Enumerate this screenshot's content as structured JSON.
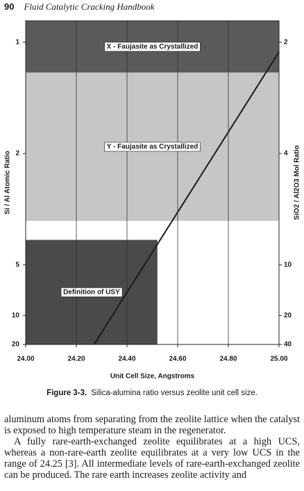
{
  "header": {
    "page_number": "90",
    "title": "Fluid Catalytic Cracking Handbook"
  },
  "chart_data": {
    "type": "line",
    "xlabel": "Unit Cell Size, Angstroms",
    "ylabel": "Si / Al Atomic Ratio",
    "y2label": "SiO2 / Al2O3 Mol Ratio",
    "xlim": [
      24,
      25
    ],
    "xticks": [
      {
        "value": 24,
        "label": "24.00"
      },
      {
        "value": 24.2,
        "label": "24.20"
      },
      {
        "value": 24.4,
        "label": "24.40"
      },
      {
        "value": 24.6,
        "label": "24.60"
      },
      {
        "value": 24.8,
        "label": "24.80"
      },
      {
        "value": 25,
        "label": "25.00"
      }
    ],
    "yscale": "al-fraction",
    "ylim": [
      20,
      0.88
    ],
    "yticks": [
      1,
      2,
      5,
      10,
      20
    ],
    "y2scale": "alumina-fraction",
    "y2lim": [
      40,
      1.76
    ],
    "y2ticks": [
      2,
      4,
      10,
      20,
      40
    ],
    "grid": true,
    "bands": [
      {
        "label": "X - Faujasite as Crystallized",
        "xrange": [
          24,
          25
        ],
        "yrange": [
          0.88,
          1.2
        ],
        "color": "#5a5a5a"
      },
      {
        "label": "Y - Faujasite as Crystallized",
        "xrange": [
          24,
          25
        ],
        "yrange": [
          1.2,
          3.3
        ],
        "color": "#c6c6c6"
      },
      {
        "label": "Definition of USY",
        "xrange": [
          24,
          24.52
        ],
        "yrange": [
          3.9,
          20
        ],
        "color": "#4a4a4a"
      }
    ],
    "series": [
      {
        "color": "#1a1a1a",
        "x": [
          24.27,
          25
        ],
        "values": [
          20,
          1.06
        ]
      }
    ]
  },
  "caption": {
    "label": "Figure 3-3.",
    "text": "Silica-alumina ratio versus zeolite unit cell size."
  },
  "body": [
    "aluminum atoms from separating from the zeolite lattice when the catalyst is exposed to high temperature steam in the regenerator.",
    "A fully rare-earth-exchanged zeolite equilibrates at a high UCS, whereas a non-rare-earth zeolite equilibrates at a very low UCS in the range of 24.25 [3]. All intermediate levels of rare-earth-exchanged zeolite can be produced. The rare earth increases zeolite activity and"
  ]
}
